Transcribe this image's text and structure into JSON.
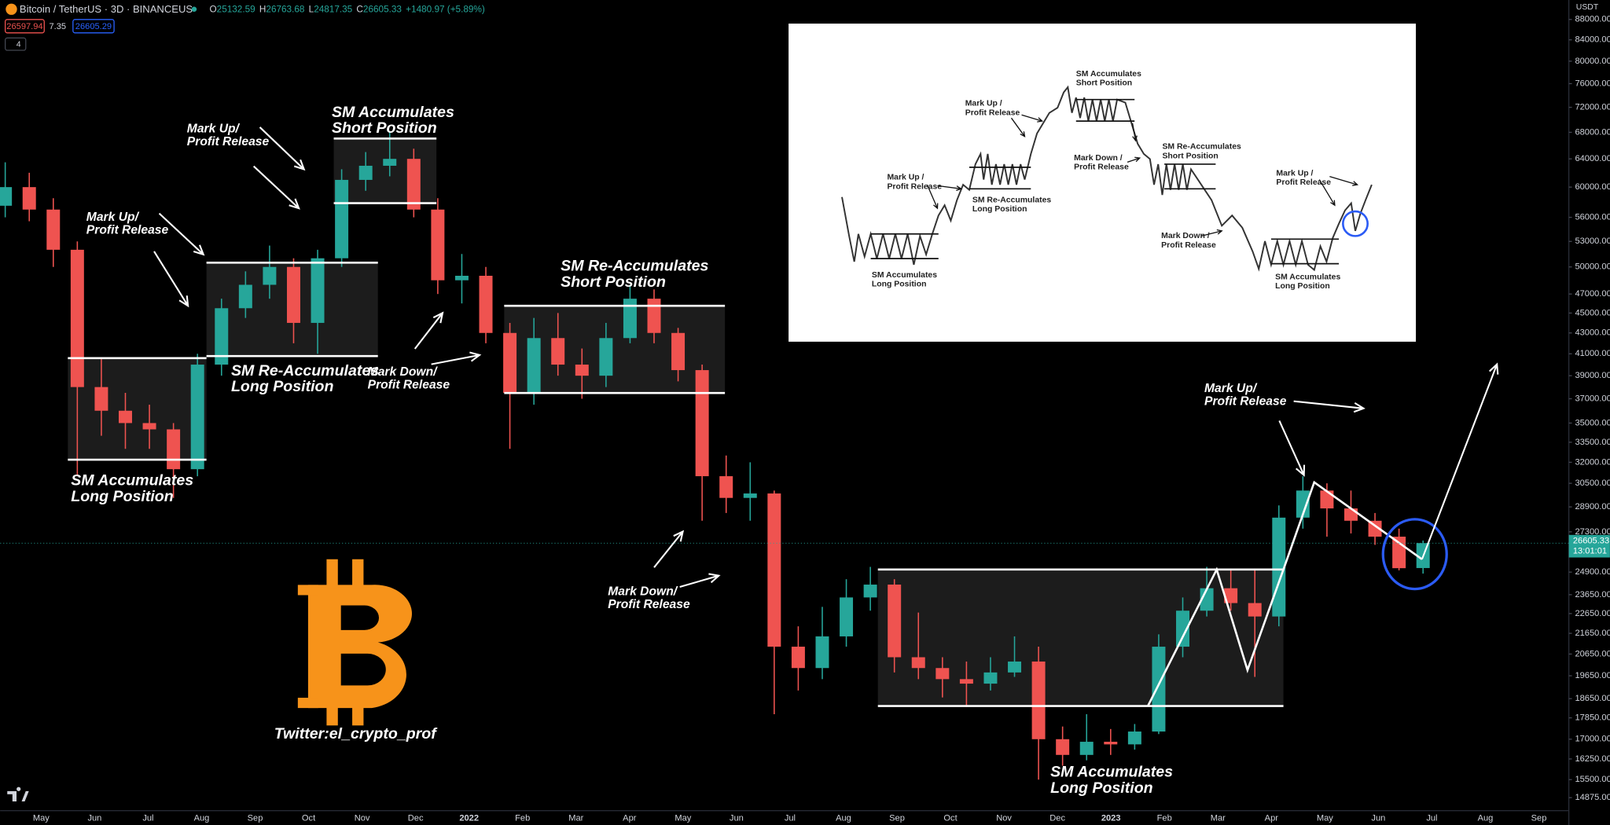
{
  "header": {
    "symbol": "Bitcoin / TetherUS · 3D · BINANCEUS",
    "ohlc_labels": [
      "O",
      "H",
      "L",
      "C"
    ],
    "change": "+1480.97 (+5.89%)",
    "bid": "26597.94",
    "spread": "7.35",
    "ask": "26605.29",
    "indicators": "4",
    "currency": "USDT"
  },
  "price_tag": {
    "countdown": "13:01:01"
  },
  "chart_data": {
    "type": "candlestick",
    "log_scale": true,
    "up_color": "#26a69a",
    "down_color": "#ef5350",
    "open": [
      57500,
      60000,
      57000,
      52000,
      38000,
      36000,
      35000,
      34500,
      31500,
      40000,
      45500,
      48000,
      50000,
      44000,
      51000,
      61000,
      63000,
      64000,
      57000,
      48500,
      49000,
      43000,
      37500,
      42500,
      40000,
      39000,
      42500,
      46500,
      43000,
      39500,
      31000,
      29500,
      29800,
      21000,
      20000,
      21500,
      23500,
      24200,
      20500,
      20000,
      19500,
      19300,
      19800,
      20300,
      17000,
      16400,
      16900,
      16800,
      17300,
      21000,
      22800,
      24000,
      23200,
      22500,
      28200,
      30000,
      28800,
      28000,
      27000,
      25132.59
    ],
    "high": [
      63500,
      62000,
      58500,
      53000,
      40500,
      37500,
      36500,
      35000,
      41000,
      46500,
      49500,
      52500,
      51000,
      52000,
      62500,
      65000,
      68000,
      65500,
      58500,
      51500,
      50000,
      44000,
      44500,
      45000,
      41500,
      44000,
      48000,
      47500,
      43500,
      40000,
      32500,
      32000,
      30000,
      22000,
      23000,
      24500,
      25200,
      24500,
      22700,
      20500,
      20300,
      20500,
      21500,
      21000,
      17500,
      18000,
      17400,
      17600,
      21600,
      23500,
      25200,
      25000,
      25000,
      29000,
      31000,
      30500,
      30000,
      28500,
      27500,
      26763.68
    ],
    "low": [
      56000,
      55500,
      50000,
      31000,
      34000,
      33000,
      33000,
      29500,
      31000,
      39000,
      44500,
      46500,
      42000,
      41000,
      50000,
      59500,
      61500,
      56000,
      47000,
      46000,
      42000,
      33000,
      36500,
      39000,
      37000,
      38000,
      42000,
      42000,
      38500,
      28000,
      28500,
      28000,
      18000,
      19000,
      19500,
      21000,
      22800,
      19800,
      19500,
      18700,
      18300,
      19000,
      19600,
      15500,
      16000,
      16200,
      16400,
      16600,
      17200,
      20500,
      22500,
      22800,
      19600,
      22000,
      27500,
      27000,
      27200,
      26500,
      25000,
      24817.35
    ],
    "close": [
      60000,
      57000,
      52000,
      38000,
      36000,
      35000,
      34500,
      31500,
      40000,
      45500,
      48000,
      50000,
      44000,
      51000,
      61000,
      63000,
      64000,
      57000,
      48500,
      49000,
      43000,
      37500,
      42500,
      40000,
      39000,
      42500,
      46500,
      43000,
      39500,
      31000,
      29500,
      29800,
      21000,
      20000,
      21500,
      23500,
      24200,
      20500,
      20000,
      19500,
      19300,
      19800,
      20300,
      17000,
      16400,
      16900,
      16800,
      17300,
      21000,
      22800,
      24000,
      23200,
      22500,
      28200,
      30000,
      28800,
      28000,
      27000,
      25124.36,
      26605.33
    ],
    "ylim": [
      14440,
      92000
    ],
    "yticks": [
      {
        "value": 88000,
        "label": "88000.00"
      },
      {
        "value": 84000,
        "label": "84000.00"
      },
      {
        "value": 80000,
        "label": "80000.00"
      },
      {
        "value": 76000,
        "label": "76000.00"
      },
      {
        "value": 72000,
        "label": "72000.00"
      },
      {
        "value": 68000,
        "label": "68000.00"
      },
      {
        "value": 64000,
        "label": "64000.00"
      },
      {
        "value": 60000,
        "label": "60000.00"
      },
      {
        "value": 56000,
        "label": "56000.00"
      },
      {
        "value": 53000,
        "label": "53000.00"
      },
      {
        "value": 50000,
        "label": "50000.00"
      },
      {
        "value": 47000,
        "label": "47000.00"
      },
      {
        "value": 45000,
        "label": "45000.00"
      },
      {
        "value": 43000,
        "label": "43000.00"
      },
      {
        "value": 41000,
        "label": "41000.00"
      },
      {
        "value": 39000,
        "label": "39000.00"
      },
      {
        "value": 37000,
        "label": "37000.00"
      },
      {
        "value": 35000,
        "label": "35000.00"
      },
      {
        "value": 33500,
        "label": "33500.00"
      },
      {
        "value": 32000,
        "label": "32000.00"
      },
      {
        "value": 30500,
        "label": "30500.00"
      },
      {
        "value": 28900,
        "label": "28900.00"
      },
      {
        "value": 27300,
        "label": "27300.00"
      },
      {
        "value": 24900,
        "label": "24900.00"
      },
      {
        "value": 23650,
        "label": "23650.00"
      },
      {
        "value": 22650,
        "label": "22650.00"
      },
      {
        "value": 21650,
        "label": "21650.00"
      },
      {
        "value": 20650,
        "label": "20650.00"
      },
      {
        "value": 19650,
        "label": "19650.00"
      },
      {
        "value": 18650,
        "label": "18650.00"
      },
      {
        "value": 17850,
        "label": "17850.00"
      },
      {
        "value": 17000,
        "label": "17000.00"
      },
      {
        "value": 16250,
        "label": "16250.00"
      },
      {
        "value": 15500,
        "label": "15500.00"
      },
      {
        "value": 14875,
        "label": "14875.00"
      }
    ],
    "xtick_labels": [
      "May",
      "Jun",
      "Jul",
      "Aug",
      "Sep",
      "Oct",
      "Nov",
      "Dec",
      "2022",
      "Feb",
      "Mar",
      "Apr",
      "May",
      "Jun",
      "Jul",
      "Aug",
      "Sep",
      "Oct",
      "Nov",
      "Dec",
      "2023",
      "Feb",
      "Mar",
      "Apr",
      "May",
      "Jun",
      "Jul",
      "Aug",
      "Sep"
    ]
  },
  "annotations": [
    {
      "lines": [
        "SM Accumulates",
        "Short Position"
      ]
    },
    {
      "lines": [
        "Mark Up/",
        "Profit Release"
      ]
    },
    {
      "lines": [
        "Mark Up/",
        "Profit Release"
      ]
    },
    {
      "lines": [
        "SM Re-Accumulates",
        "Long Position"
      ]
    },
    {
      "lines": [
        "Mark Down/",
        "Profit Release"
      ]
    },
    {
      "lines": [
        "SM Re-Accumulates",
        "Short Position"
      ]
    },
    {
      "lines": [
        "SM Accumulates",
        "Long Position"
      ]
    },
    {
      "lines": [
        "Mark Down/",
        "Profit Release"
      ]
    },
    {
      "lines": [
        "Mark Up/",
        "Profit Release"
      ]
    },
    {
      "lines": [
        "SM Accumulates",
        "Long Position"
      ]
    }
  ],
  "watermark": "Twitter:el_crypto_prof",
  "inset": {
    "labels": [
      {
        "lines": [
          "SM Accumulates",
          "Short Position"
        ]
      },
      {
        "lines": [
          "Mark Up /",
          "Profit Release"
        ]
      },
      {
        "lines": [
          "Mark Up /",
          "Profit Release"
        ]
      },
      {
        "lines": [
          "SM Re-Accumulates",
          "Long Position"
        ]
      },
      {
        "lines": [
          "Mark Down /",
          "Profit Release"
        ]
      },
      {
        "lines": [
          "SM Re-Accumulates",
          "Short Position"
        ]
      },
      {
        "lines": [
          "Mark Down /",
          "Profit Release"
        ]
      },
      {
        "lines": [
          "SM Accumulates",
          "Long Position"
        ]
      },
      {
        "lines": [
          "SM Accumulates",
          "Long Position"
        ]
      },
      {
        "lines": [
          "Mark Up /",
          "Profit Release"
        ]
      }
    ]
  }
}
